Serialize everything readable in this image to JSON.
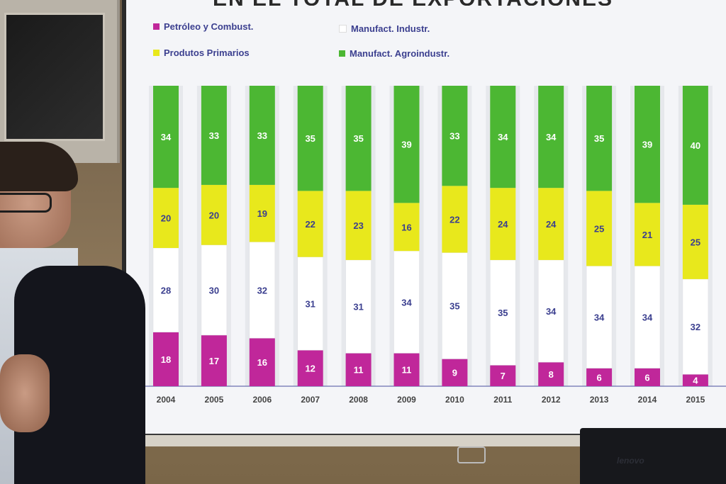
{
  "slide": {
    "title": "EN EL TOTAL DE EXPORTACIONES"
  },
  "legend": [
    {
      "label": "Petróleo y Combust.",
      "color": "#c0279a"
    },
    {
      "label": "Manufact. Industr.",
      "color": "#ffffff"
    },
    {
      "label": "Produtos Primarios",
      "color": "#e8e81c"
    },
    {
      "label": "Manufact. Agroindustr.",
      "color": "#4cb733"
    }
  ],
  "laptop": {
    "brand": "lenovo"
  },
  "chart_data": {
    "type": "bar",
    "stacked": true,
    "title": "EN EL TOTAL DE EXPORTACIONES",
    "categories": [
      "2004",
      "2005",
      "2006",
      "2007",
      "2008",
      "2009",
      "2010",
      "2011",
      "2012",
      "2013",
      "2014",
      "2015"
    ],
    "series": [
      {
        "name": "Petróleo y Combust.",
        "color": "#c0279a",
        "values": [
          18,
          17,
          16,
          12,
          11,
          11,
          9,
          7,
          8,
          6,
          6,
          4
        ]
      },
      {
        "name": "Manufact. Industr.",
        "color": "#ffffff",
        "values": [
          28,
          30,
          32,
          31,
          31,
          34,
          35,
          35,
          34,
          34,
          34,
          32
        ]
      },
      {
        "name": "Produtos Primarios",
        "color": "#e8e81c",
        "values": [
          20,
          20,
          19,
          22,
          23,
          16,
          22,
          24,
          24,
          25,
          21,
          25
        ]
      },
      {
        "name": "Manufact. Agroindustr.",
        "color": "#4cb733",
        "values": [
          34,
          33,
          33,
          35,
          35,
          39,
          33,
          34,
          34,
          35,
          39,
          40
        ]
      }
    ],
    "ylim": [
      0,
      100
    ],
    "legend_position": "top-left",
    "grid": false
  }
}
